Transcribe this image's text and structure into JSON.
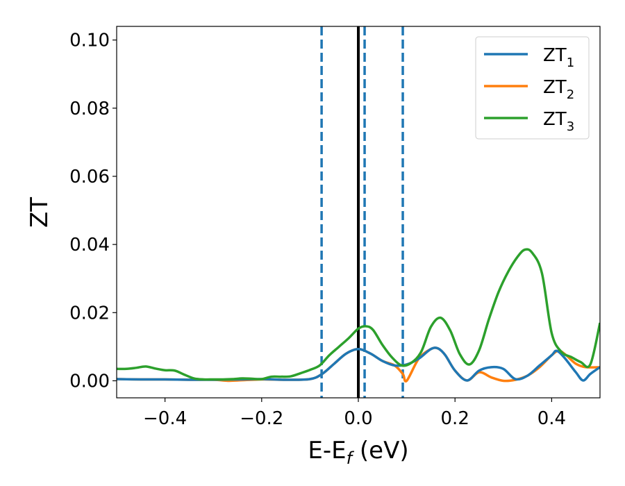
{
  "chart_data": {
    "type": "line",
    "title": "",
    "xlabel": "E-E",
    "xlabel_sub": "f",
    "xlabel_unit": "(eV)",
    "ylabel": "ZT",
    "xlim": [
      -0.5,
      0.5
    ],
    "ylim": [
      -0.005,
      0.104
    ],
    "xticks": [
      -0.4,
      -0.2,
      0.0,
      0.2,
      0.4
    ],
    "xtick_labels": [
      "−0.4",
      "−0.2",
      "0.0",
      "0.2",
      "0.4"
    ],
    "yticks": [
      0.0,
      0.02,
      0.04,
      0.06,
      0.08,
      0.1
    ],
    "ytick_labels": [
      "0.00",
      "0.02",
      "0.04",
      "0.06",
      "0.08",
      "0.10"
    ],
    "grid": false,
    "legend_position": "top-right",
    "vlines_solid": [
      {
        "x": 0.0,
        "color": "#000000"
      }
    ],
    "vlines_dashed": [
      {
        "x": -0.076,
        "color": "#1f77b4"
      },
      {
        "x": 0.013,
        "color": "#1f77b4"
      },
      {
        "x": 0.092,
        "color": "#1f77b4"
      }
    ],
    "series": [
      {
        "name": "ZT",
        "name_sub": "1",
        "color": "#1f77b4",
        "x": [
          -0.5,
          -0.45,
          -0.4,
          -0.35,
          -0.3,
          -0.25,
          -0.2,
          -0.15,
          -0.1,
          -0.075,
          -0.05,
          -0.025,
          0.0,
          0.025,
          0.05,
          0.075,
          0.1,
          0.125,
          0.15,
          0.165,
          0.18,
          0.2,
          0.225,
          0.25,
          0.275,
          0.3,
          0.325,
          0.35,
          0.375,
          0.4,
          0.41,
          0.425,
          0.45,
          0.465,
          0.48,
          0.5
        ],
        "y": [
          0.0005,
          0.0004,
          0.0004,
          0.0003,
          0.0003,
          0.0004,
          0.0005,
          0.0003,
          0.0005,
          0.002,
          0.005,
          0.008,
          0.0093,
          0.008,
          0.0058,
          0.0045,
          0.0048,
          0.0065,
          0.0093,
          0.0095,
          0.0075,
          0.003,
          0.0001,
          0.003,
          0.004,
          0.0035,
          0.0005,
          0.0015,
          0.0045,
          0.0075,
          0.0088,
          0.007,
          0.0025,
          0.0001,
          0.002,
          0.004
        ]
      },
      {
        "name": "ZT",
        "name_sub": "2",
        "color": "#ff7f0e",
        "x": [
          -0.5,
          -0.45,
          -0.4,
          -0.35,
          -0.3,
          -0.27,
          -0.25,
          -0.2,
          -0.15,
          -0.1,
          -0.075,
          -0.05,
          -0.025,
          0.0,
          0.025,
          0.05,
          0.075,
          0.092,
          0.1,
          0.125,
          0.15,
          0.165,
          0.18,
          0.2,
          0.225,
          0.25,
          0.275,
          0.3,
          0.325,
          0.35,
          0.375,
          0.4,
          0.415,
          0.43,
          0.45,
          0.47,
          0.5
        ],
        "y": [
          0.0005,
          0.0004,
          0.0004,
          0.0003,
          0.0003,
          0.0,
          0.0001,
          0.0004,
          0.0003,
          0.0005,
          0.002,
          0.005,
          0.008,
          0.0093,
          0.008,
          0.0058,
          0.0045,
          0.002,
          0.0,
          0.0065,
          0.0093,
          0.0095,
          0.0075,
          0.003,
          0.0001,
          0.0025,
          0.001,
          0.0,
          0.0003,
          0.0015,
          0.004,
          0.0075,
          0.0088,
          0.0075,
          0.005,
          0.004,
          0.004
        ]
      },
      {
        "name": "ZT",
        "name_sub": "3",
        "color": "#2ca02c",
        "x": [
          -0.5,
          -0.48,
          -0.46,
          -0.44,
          -0.42,
          -0.4,
          -0.38,
          -0.36,
          -0.34,
          -0.32,
          -0.3,
          -0.28,
          -0.26,
          -0.24,
          -0.22,
          -0.2,
          -0.18,
          -0.16,
          -0.14,
          -0.12,
          -0.1,
          -0.08,
          -0.06,
          -0.04,
          -0.02,
          0.0,
          0.015,
          0.03,
          0.05,
          0.07,
          0.09,
          0.11,
          0.13,
          0.15,
          0.17,
          0.19,
          0.21,
          0.23,
          0.25,
          0.27,
          0.29,
          0.31,
          0.33,
          0.345,
          0.36,
          0.38,
          0.4,
          0.42,
          0.44,
          0.46,
          0.48,
          0.5
        ],
        "y": [
          0.0035,
          0.0035,
          0.0038,
          0.0042,
          0.0036,
          0.0031,
          0.003,
          0.0018,
          0.0007,
          0.0004,
          0.0004,
          0.0004,
          0.0005,
          0.0007,
          0.0006,
          0.0005,
          0.0012,
          0.0012,
          0.0013,
          0.0022,
          0.0032,
          0.0045,
          0.0075,
          0.01,
          0.0125,
          0.0153,
          0.016,
          0.015,
          0.0105,
          0.0068,
          0.0045,
          0.0053,
          0.0085,
          0.0158,
          0.0185,
          0.0148,
          0.0078,
          0.0048,
          0.009,
          0.018,
          0.026,
          0.032,
          0.0365,
          0.0385,
          0.0375,
          0.0315,
          0.014,
          0.0085,
          0.007,
          0.0055,
          0.0048,
          0.017
        ]
      }
    ]
  }
}
